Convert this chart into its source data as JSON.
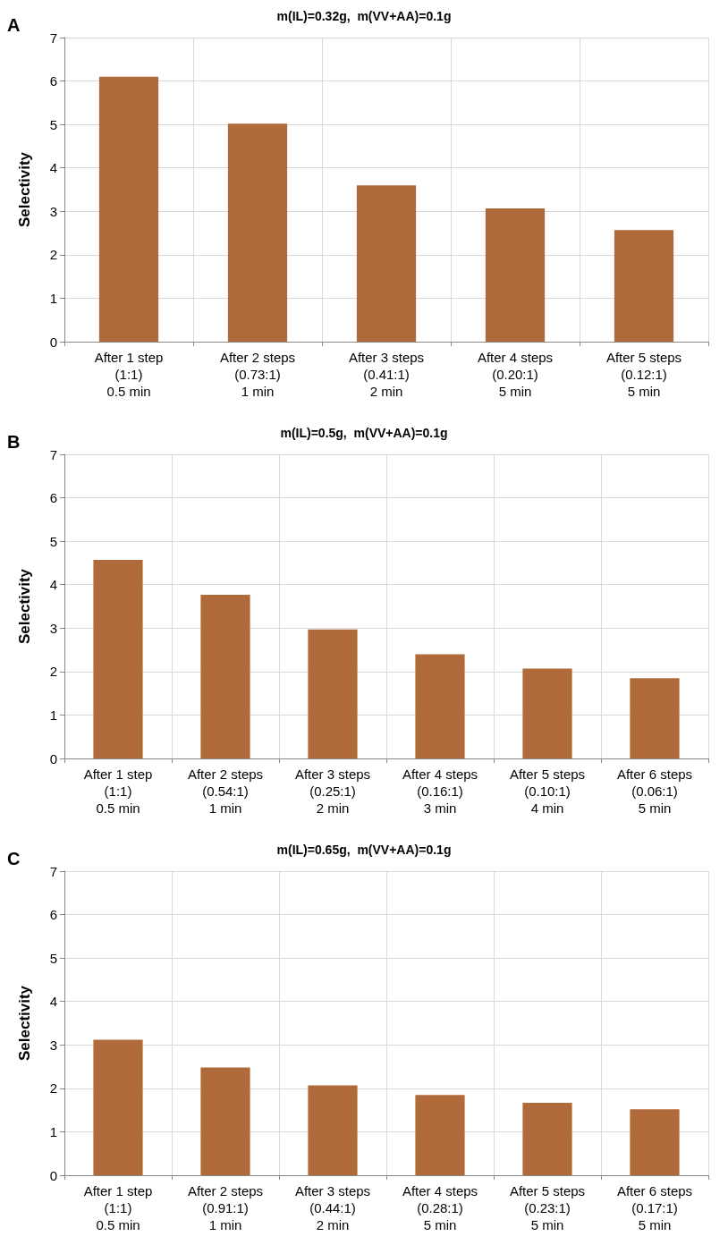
{
  "chart_data": [
    {
      "type": "bar",
      "title": "m(IL)=0.32g,  m(VV+AA)=0.1g",
      "ylabel": "Selectivity",
      "annotations": [
        "A"
      ],
      "categories": [
        "After 1 step\n(1:1)\n0.5 min",
        "After 2 steps\n(0.73:1)\n1 min",
        "After 3 steps\n(0.41:1)\n2 min",
        "After 4 steps\n(0.20:1)\n5 min",
        "After 5 steps\n(0.12:1)\n5 min"
      ],
      "values": [
        6.1,
        5.02,
        3.6,
        3.07,
        2.57
      ],
      "color": "#b06a3a",
      "ylim": [
        0,
        7
      ],
      "yticks": [
        0,
        1,
        2,
        3,
        4,
        5,
        6,
        7
      ],
      "grid": true
    },
    {
      "type": "bar",
      "title": "m(IL)=0.5g,  m(VV+AA)=0.1g",
      "ylabel": "Selectivity",
      "annotations": [
        "B"
      ],
      "categories": [
        "After 1 step\n(1:1)\n0.5 min",
        "After 2 steps\n(0.54:1)\n1 min",
        "After 3 steps\n(0.25:1)\n2 min",
        "After 4 steps\n(0.16:1)\n3 min",
        "After 5 steps\n(0.10:1)\n4 min",
        "After 6 steps\n(0.06:1)\n5 min"
      ],
      "values": [
        4.57,
        3.77,
        2.97,
        2.4,
        2.07,
        1.85
      ],
      "color": "#b06a3a",
      "ylim": [
        0,
        7
      ],
      "yticks": [
        0,
        1,
        2,
        3,
        4,
        5,
        6,
        7
      ],
      "grid": true
    },
    {
      "type": "bar",
      "title": "m(IL)=0.65g,  m(VV+AA)=0.1g",
      "ylabel": "Selectivity",
      "annotations": [
        "C"
      ],
      "categories": [
        "After 1 step\n(1:1)\n0.5 min",
        "After 2 steps\n(0.91:1)\n1 min",
        "After 3 steps\n(0.44:1)\n2 min",
        "After 4 steps\n(0.28:1)\n5 min",
        "After 5 steps\n(0.23:1)\n5 min",
        "After 6 steps\n(0.17:1)\n5 min"
      ],
      "values": [
        3.12,
        2.48,
        2.07,
        1.85,
        1.67,
        1.52
      ],
      "color": "#b06a3a",
      "ylim": [
        0,
        7
      ],
      "yticks": [
        0,
        1,
        2,
        3,
        4,
        5,
        6,
        7
      ],
      "grid": true
    }
  ]
}
